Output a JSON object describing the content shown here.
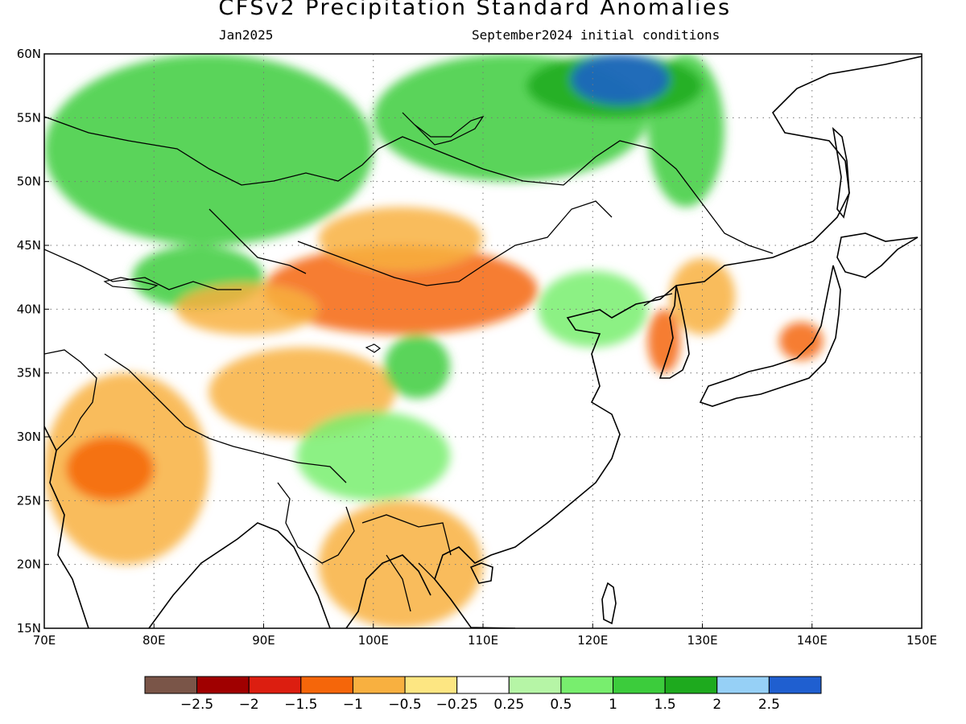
{
  "header": {
    "title": "CFSv2 Precipitation Standard Anomalies",
    "subtitle_left": "Jan2025",
    "subtitle_right": "September2024 initial conditions"
  },
  "map": {
    "projection": "equirectangular",
    "lon_range": [
      70,
      150
    ],
    "lat_range": [
      15,
      60
    ],
    "gridlines": "dotted",
    "lon_ticks": [
      "70E",
      "80E",
      "90E",
      "100E",
      "110E",
      "120E",
      "130E",
      "140E",
      "150E"
    ],
    "lat_ticks": [
      "15N",
      "20N",
      "25N",
      "30N",
      "35N",
      "40N",
      "45N",
      "50N",
      "55N",
      "60N"
    ]
  },
  "colorbar": {
    "colors": [
      "#7a5548",
      "#a00000",
      "#dc1e10",
      "#f5660a",
      "#f8b040",
      "#fde682",
      "#ffffff",
      "#b6f5a6",
      "#78ee6e",
      "#3ccc3c",
      "#1eaa1e",
      "#96d0f6",
      "#1f5fd0"
    ],
    "labels": [
      "-2.5",
      "-2",
      "-1.5",
      "-1",
      "-0.5",
      "-0.25",
      "0.25",
      "0.5",
      "1",
      "1.5",
      "2",
      "2.5"
    ]
  },
  "anomaly_regions": [
    {
      "lon": [
        70,
        100
      ],
      "lat": [
        45,
        60
      ],
      "category": 9
    },
    {
      "lon": [
        100,
        125
      ],
      "lat": [
        50,
        60
      ],
      "category": 9
    },
    {
      "lon": [
        125,
        132
      ],
      "lat": [
        48,
        60
      ],
      "category": 9
    },
    {
      "lon": [
        114,
        130
      ],
      "lat": [
        55,
        60
      ],
      "category": 10
    },
    {
      "lon": [
        118,
        127
      ],
      "lat": [
        56,
        60
      ],
      "category": 12
    },
    {
      "lon": [
        78,
        90
      ],
      "lat": [
        40,
        45
      ],
      "category": 9
    },
    {
      "lon": [
        90,
        115
      ],
      "lat": [
        38,
        45
      ],
      "category": 3
    },
    {
      "lon": [
        95,
        110
      ],
      "lat": [
        43,
        48
      ],
      "category": 4
    },
    {
      "lon": [
        82,
        95
      ],
      "lat": [
        38,
        42
      ],
      "category": 4
    },
    {
      "lon": [
        70,
        85
      ],
      "lat": [
        20,
        35
      ],
      "category": 4
    },
    {
      "lon": [
        72,
        80
      ],
      "lat": [
        25,
        30
      ],
      "category": 3
    },
    {
      "lon": [
        85,
        102
      ],
      "lat": [
        30,
        37
      ],
      "category": 4
    },
    {
      "lon": [
        93,
        107
      ],
      "lat": [
        25,
        32
      ],
      "category": 8
    },
    {
      "lon": [
        101,
        107
      ],
      "lat": [
        33,
        38
      ],
      "category": 9
    },
    {
      "lon": [
        95,
        110
      ],
      "lat": [
        15,
        25
      ],
      "category": 4
    },
    {
      "lon": [
        115,
        125
      ],
      "lat": [
        37,
        43
      ],
      "category": 8
    },
    {
      "lon": [
        127,
        133
      ],
      "lat": [
        38,
        44
      ],
      "category": 4
    },
    {
      "lon": [
        137,
        141
      ],
      "lat": [
        36,
        39
      ],
      "category": 3
    },
    {
      "lon": [
        125,
        128
      ],
      "lat": [
        35,
        40
      ],
      "category": 3
    }
  ]
}
